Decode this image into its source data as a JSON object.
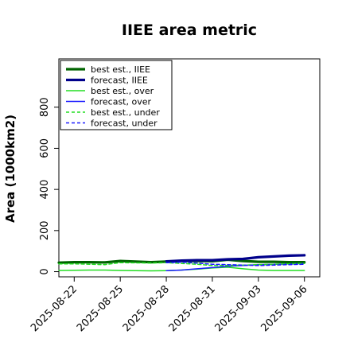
{
  "chart_data": {
    "type": "line",
    "title": "IIEE area metric",
    "ylabel": "Area (1000km2)",
    "xlabel": "",
    "x_tick_labels": [
      {
        "label": "2025-08-22",
        "color": "#000000"
      },
      {
        "label": "2025-08-25",
        "color": "#000000"
      },
      {
        "label": "2025-08-28",
        "color": "#2e8b22"
      },
      {
        "label": "2025-08-31",
        "color": "#000000"
      },
      {
        "label": "2025-09-03",
        "color": "#000000"
      },
      {
        "label": "2025-09-06",
        "color": "#000000"
      }
    ],
    "y_ticks": [
      0,
      200,
      400,
      600,
      800
    ],
    "ylim": [
      -25,
      1035
    ],
    "xlim": [
      "2025-08-21",
      "2025-09-07"
    ],
    "grid": false,
    "legend_position": "top-left",
    "series": [
      {
        "name": "best est., IIEE",
        "color": "#006400",
        "style": "solid",
        "width": 3.2,
        "x": [
          "2025-08-21",
          "2025-08-22",
          "2025-08-23",
          "2025-08-24",
          "2025-08-25",
          "2025-08-27",
          "2025-08-28",
          "2025-08-29",
          "2025-08-30",
          "2025-08-31",
          "2025-09-01",
          "2025-09-02",
          "2025-09-03",
          "2025-09-04",
          "2025-09-05",
          "2025-09-06"
        ],
        "y": [
          44,
          46,
          46,
          45,
          52,
          46,
          49,
          52,
          52,
          51,
          58,
          52,
          48,
          48,
          46,
          46
        ]
      },
      {
        "name": "forecast, IIEE",
        "color": "#00008b",
        "style": "solid",
        "width": 3.2,
        "x": [
          "2025-08-28",
          "2025-08-29",
          "2025-08-30",
          "2025-08-31",
          "2025-09-01",
          "2025-09-02",
          "2025-09-03",
          "2025-09-04",
          "2025-09-05",
          "2025-09-06"
        ],
        "y": [
          50,
          54,
          56,
          56,
          60,
          62,
          70,
          74,
          78,
          80
        ]
      },
      {
        "name": "best est., over",
        "color": "#22dd22",
        "style": "solid",
        "width": 1.5,
        "x": [
          "2025-08-21",
          "2025-08-22",
          "2025-08-23",
          "2025-08-24",
          "2025-08-25",
          "2025-08-27",
          "2025-08-28",
          "2025-08-29",
          "2025-08-30",
          "2025-08-31",
          "2025-09-01",
          "2025-09-02",
          "2025-09-03",
          "2025-09-04",
          "2025-09-05",
          "2025-09-06"
        ],
        "y": [
          6,
          7,
          8,
          8,
          6,
          4,
          5,
          8,
          12,
          18,
          22,
          14,
          8,
          6,
          6,
          6
        ]
      },
      {
        "name": "forecast, over",
        "color": "#1a1aff",
        "style": "solid",
        "width": 1.5,
        "x": [
          "2025-08-28",
          "2025-08-29",
          "2025-08-30",
          "2025-08-31",
          "2025-09-01",
          "2025-09-02",
          "2025-09-03",
          "2025-09-04",
          "2025-09-05",
          "2025-09-06"
        ],
        "y": [
          5,
          8,
          14,
          20,
          26,
          30,
          34,
          36,
          38,
          40
        ]
      },
      {
        "name": "best est., under",
        "color": "#22dd22",
        "style": "dashed",
        "width": 1.5,
        "x": [
          "2025-08-21",
          "2025-08-22",
          "2025-08-23",
          "2025-08-24",
          "2025-08-25",
          "2025-08-27",
          "2025-08-28",
          "2025-08-29",
          "2025-08-30",
          "2025-08-31",
          "2025-09-01",
          "2025-09-02",
          "2025-09-03",
          "2025-09-04",
          "2025-09-05",
          "2025-09-06"
        ],
        "y": [
          38,
          38,
          36,
          34,
          44,
          42,
          44,
          40,
          36,
          30,
          30,
          32,
          34,
          36,
          38,
          40
        ]
      },
      {
        "name": "forecast, under",
        "color": "#1a1aff",
        "style": "dashed",
        "width": 1.5,
        "x": [
          "2025-08-28",
          "2025-08-29",
          "2025-08-30",
          "2025-08-31",
          "2025-09-01",
          "2025-09-02",
          "2025-09-03",
          "2025-09-04",
          "2025-09-05",
          "2025-09-06"
        ],
        "y": [
          44,
          46,
          42,
          36,
          34,
          32,
          30,
          32,
          34,
          36
        ]
      }
    ]
  }
}
